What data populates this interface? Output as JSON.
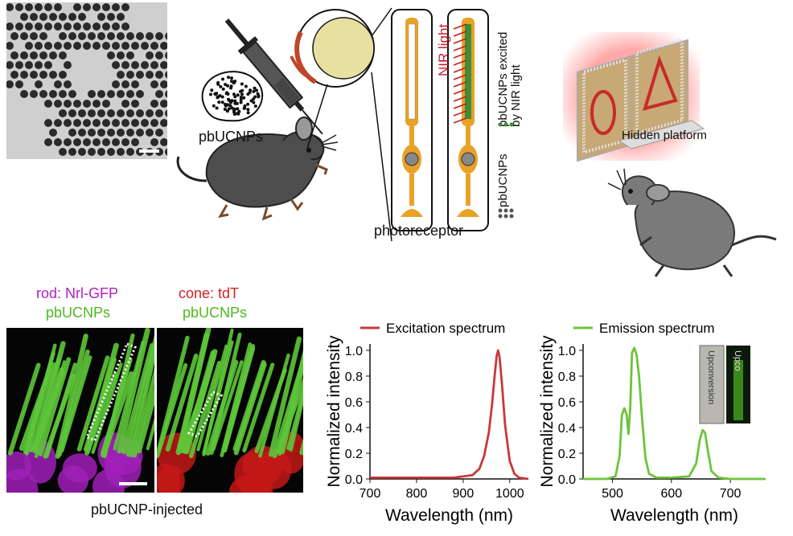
{
  "panel_a": {
    "label_pbucnps": "pbUCNPs"
  },
  "schematic": {
    "nir_label": "NIR light",
    "excited_label_1": "pbUCNPs excited",
    "excited_label_2": "by NIR light",
    "pbucnps_label": "pbUCNPs",
    "photoreceptor_label": "photoreceptor"
  },
  "behavior": {
    "hidden_platform_label": "Hidden platform"
  },
  "histology": {
    "rod_label": "rod: Nrl-GFP",
    "rod_sub": "pbUCNPs",
    "cone_label": "cone: tdT",
    "cone_sub": "pbUCNPs",
    "caption": "pbUCNP-injected"
  },
  "inset": {
    "text_left": "Upconversion",
    "text_right": "Upco"
  },
  "colors": {
    "excitation": "#c8383a",
    "emission": "#6cc43a",
    "rod_label": "#b21fc3",
    "cone_label": "#d62020",
    "pbucnp_label": "#4fb81f"
  },
  "chart_data": [
    {
      "type": "line",
      "legend": "Excitation spectrum",
      "xlabel": "Wavelength (nm)",
      "ylabel": "Normalized intensity",
      "xlim": [
        700,
        1040
      ],
      "ylim": [
        0,
        1.05
      ],
      "xticks": [
        700,
        800,
        900,
        1000
      ],
      "yticks": [
        0.0,
        0.2,
        0.4,
        0.6,
        0.8,
        1.0
      ],
      "x": [
        700,
        800,
        880,
        920,
        935,
        945,
        955,
        962,
        968,
        972,
        975,
        978,
        983,
        990,
        1000,
        1010,
        1020,
        1040
      ],
      "y": [
        0.01,
        0.01,
        0.01,
        0.03,
        0.08,
        0.18,
        0.36,
        0.58,
        0.82,
        0.96,
        1.0,
        0.95,
        0.75,
        0.42,
        0.14,
        0.04,
        0.01,
        0.0
      ]
    },
    {
      "type": "line",
      "legend": "Emission spectrum",
      "xlabel": "Wavelength (nm)",
      "ylabel": "Normalized intensity",
      "xlim": [
        450,
        760
      ],
      "ylim": [
        0,
        1.05
      ],
      "xticks": [
        500,
        600,
        700
      ],
      "yticks": [
        0.0,
        0.2,
        0.4,
        0.6,
        0.8,
        1.0
      ],
      "x": [
        450,
        490,
        505,
        512,
        516,
        520,
        524,
        527,
        530,
        533,
        537,
        541,
        545,
        550,
        556,
        562,
        575,
        600,
        630,
        642,
        648,
        653,
        657,
        662,
        668,
        680,
        700,
        760
      ],
      "y": [
        0.0,
        0.0,
        0.02,
        0.18,
        0.5,
        0.55,
        0.5,
        0.35,
        0.55,
        0.98,
        1.02,
        0.96,
        0.8,
        0.48,
        0.16,
        0.04,
        0.01,
        0.01,
        0.02,
        0.12,
        0.3,
        0.38,
        0.36,
        0.22,
        0.06,
        0.01,
        0.0,
        0.0
      ]
    }
  ]
}
